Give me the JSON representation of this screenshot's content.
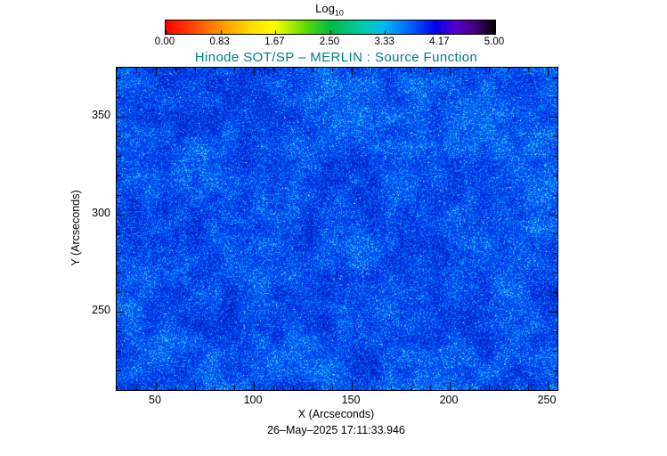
{
  "chart_data": {
    "type": "heatmap",
    "title": "Hinode SOT/SP – MERLIN : Source Function",
    "xlabel": "X (Arcseconds)",
    "ylabel": "Y (Arcseconds)",
    "timestamp": "26–May–2025 17:11:33.946",
    "xlim": [
      30,
      255
    ],
    "ylim": [
      210,
      375
    ],
    "x_major_ticks": [
      50,
      100,
      150,
      200,
      250
    ],
    "y_major_ticks": [
      250,
      300,
      350
    ],
    "x_minor_step": 10,
    "y_minor_step": 10,
    "grid": false,
    "legend_position": "none",
    "colorbar": {
      "label_main": "Log",
      "label_sub": "10",
      "range": [
        0,
        5
      ],
      "ticks": [
        "0.00",
        "0.83",
        "1.67",
        "2.50",
        "3.33",
        "4.17",
        "5.00"
      ],
      "orientation": "horizontal",
      "position": "top",
      "stops": [
        {
          "pos": 0.0,
          "color": "#ff0000"
        },
        {
          "pos": 0.08,
          "color": "#ff4400"
        },
        {
          "pos": 0.17,
          "color": "#ff9900"
        },
        {
          "pos": 0.26,
          "color": "#ffdd00"
        },
        {
          "pos": 0.33,
          "color": "#ffff00"
        },
        {
          "pos": 0.42,
          "color": "#66dd00"
        },
        {
          "pos": 0.5,
          "color": "#00bb44"
        },
        {
          "pos": 0.6,
          "color": "#00ccaa"
        },
        {
          "pos": 0.66,
          "color": "#00bbee"
        },
        {
          "pos": 0.74,
          "color": "#0066ff"
        },
        {
          "pos": 0.82,
          "color": "#0000ee"
        },
        {
          "pos": 0.88,
          "color": "#5500cc"
        },
        {
          "pos": 0.94,
          "color": "#440077"
        },
        {
          "pos": 1.0,
          "color": "#000000"
        }
      ]
    },
    "data_description": "Dense speckled solar map of log10 source function over X 30–255 arcsec, Y 210–375 arcsec; pixel values cluster in the blue range (~3.5–4.2 of 0–5 scale) with scattered cyan/green/white bright speckles and slightly darker navy patches; no large-scale features.",
    "noise_colormap": [
      {
        "pos": 0.0,
        "color": [
          0,
          0,
          110
        ]
      },
      {
        "pos": 0.3,
        "color": [
          0,
          40,
          220
        ]
      },
      {
        "pos": 0.55,
        "color": [
          0,
          100,
          255
        ]
      },
      {
        "pos": 0.75,
        "color": [
          0,
          200,
          255
        ]
      },
      {
        "pos": 0.9,
        "color": [
          150,
          255,
          230
        ]
      },
      {
        "pos": 1.0,
        "color": [
          255,
          255,
          255
        ]
      }
    ],
    "noise_seed": 20250526,
    "colors": {
      "title": "#007e7e",
      "axis": "#000000",
      "background": "#ffffff"
    }
  }
}
